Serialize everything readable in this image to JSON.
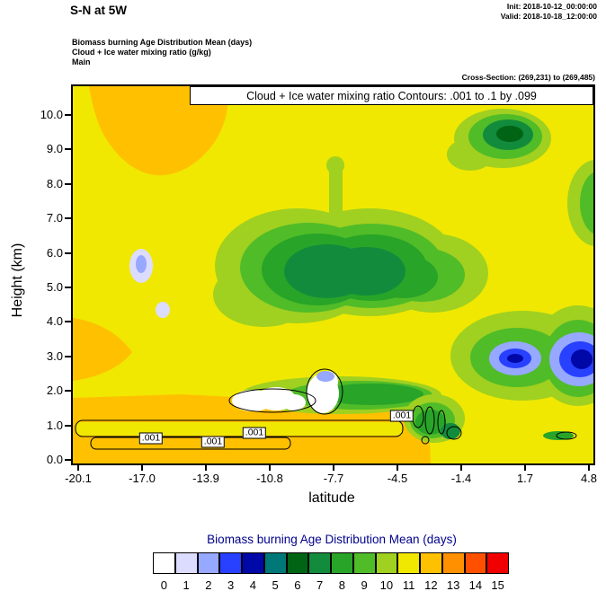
{
  "header": {
    "title": "S-N at 5W",
    "init": "Init: 2018-10-12_00:00:00",
    "valid": "Valid: 2018-10-18_12:00:00",
    "subtitle_lines": [
      "Biomass burning Age Distribution Mean   (days)",
      "Cloud + Ice water mixing ratio   (g/kg)",
      "Main"
    ],
    "cross_section": "Cross-Section: (269,231) to (269,485)"
  },
  "plot": {
    "banner": "Cloud + Ice water mixing ratio Contours: .001 to .1 by .099",
    "ylabel": "Height (km)",
    "xlabel": "latitude",
    "yticks": [
      "0.0",
      "1.0",
      "2.0",
      "3.0",
      "4.0",
      "5.0",
      "6.0",
      "7.0",
      "8.0",
      "9.0",
      "10.0"
    ],
    "xticks": [
      "-20.1",
      "-17.0",
      "-13.9",
      "-10.8",
      "-7.7",
      "-4.5",
      "-1.4",
      "1.7",
      "4.8"
    ],
    "contour_labels": [
      ".001",
      ".001",
      ".001",
      ".001"
    ]
  },
  "legend": {
    "title": "Biomass burning Age Distribution Mean  (days)",
    "title_color": "#00008b",
    "labels": [
      "0",
      "1",
      "2",
      "3",
      "4",
      "5",
      "6",
      "7",
      "8",
      "9",
      "10",
      "11",
      "12",
      "13",
      "14",
      "15"
    ],
    "colors": [
      "#ffffff",
      "#dcdcff",
      "#96a8ff",
      "#2840ff",
      "#0008a8",
      "#007878",
      "#006414",
      "#128c3c",
      "#28a428",
      "#50bc28",
      "#a0d020",
      "#f0e800",
      "#ffc000",
      "#ff9000",
      "#ff5000",
      "#f00000"
    ]
  },
  "chart_data": {
    "type": "heatmap",
    "title": "S-N at 5W",
    "fill_field": "Biomass burning Age Distribution Mean (days)",
    "overlay_field": "Cloud + Ice water mixing ratio (g/kg)",
    "xlabel": "latitude",
    "ylabel": "Height (km)",
    "x": [
      -20.1,
      -17.0,
      -13.9,
      -10.8,
      -7.7,
      -4.5,
      -1.4,
      1.7,
      4.8
    ],
    "y_km": [
      0,
      1,
      2,
      3,
      4,
      5,
      6,
      7,
      8,
      9,
      10
    ],
    "xlim": [
      -20.4,
      5.0
    ],
    "ylim": [
      0,
      10.9
    ],
    "fill_levels": [
      0,
      1,
      2,
      3,
      4,
      5,
      6,
      7,
      8,
      9,
      10,
      11,
      12,
      13,
      14,
      15
    ],
    "values_age_days_rows_h0_to_h10": [
      [
        12,
        12,
        12,
        12,
        12,
        12,
        11,
        11,
        11
      ],
      [
        12,
        12,
        12,
        12,
        12,
        12,
        11,
        10,
        11
      ],
      [
        12,
        12,
        11,
        10,
        0,
        9,
        11,
        10,
        3
      ],
      [
        12,
        11,
        11,
        9,
        8,
        9,
        11,
        11,
        4
      ],
      [
        11,
        11,
        10,
        8,
        7,
        8,
        10,
        11,
        10
      ],
      [
        11,
        11,
        10,
        8,
        7,
        8,
        10,
        11,
        11
      ],
      [
        11,
        11,
        10,
        9,
        8,
        9,
        10,
        11,
        11
      ],
      [
        11,
        12,
        11,
        10,
        9,
        10,
        11,
        11,
        11
      ],
      [
        11,
        12,
        11,
        11,
        10,
        11,
        11,
        11,
        10
      ],
      [
        11,
        11,
        11,
        11,
        10,
        11,
        11,
        11,
        9
      ],
      [
        11,
        11,
        11,
        11,
        11,
        11,
        11,
        11,
        10
      ]
    ],
    "overlay_contours": {
      "levels": [
        0.001,
        0.1
      ],
      "step": 0.099,
      "label": ".001"
    },
    "features": [
      "orange (12-day) boundary-layer band below ~1.2 km from -20 to -4.5 latitude, outlined by .001 cloud-water contours",
      "orange (12-day) lobe at upper-left (8-11 km, -20 to -14 latitude) and small wedge near 2.5-3.5 km at far left",
      "dark-green (7-8 day) plume centered near -8 latitude, 4-6.5 km, ringed by greens 8-10",
      "white (0-day) cloud cells with pale-blue cores near -8.5 to -7.5 latitude at 1.5-2.5 km",
      "blue (3-4 day) pockets with navy cores near 2-5 latitude around 2.5-3.5 km; dark-green patch near 2 latitude at 9-10 km",
      "pale lavender (1-2 day) specks near -17 latitude at 5.5-6 km"
    ]
  }
}
